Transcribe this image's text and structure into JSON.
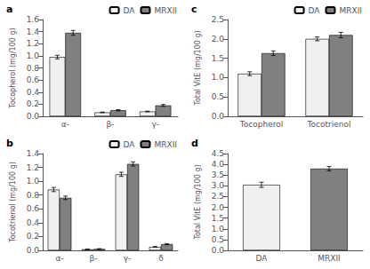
{
  "chart_data": [
    {
      "type": "bar",
      "title": "a",
      "ylabel": "Tocopherol (mg/100 g)",
      "categories": [
        "α-",
        "β-",
        "γ-"
      ],
      "series": [
        {
          "name": "DA",
          "color": "#f0f0f0",
          "values": [
            0.98,
            0.065,
            0.08
          ],
          "errors": [
            0.03,
            0.005,
            0.005
          ]
        },
        {
          "name": "MRXII",
          "color": "#808080",
          "values": [
            1.38,
            0.1,
            0.18
          ],
          "errors": [
            0.04,
            0.01,
            0.015
          ]
        }
      ],
      "ylim": [
        0,
        1.6
      ],
      "yticks": [
        {
          "value": 0,
          "label": "0.0"
        },
        0.2,
        0.4,
        0.6,
        0.8,
        {
          "value": 1.0,
          "label": "1.0"
        },
        1.2,
        1.4,
        1.6
      ],
      "grid": false,
      "legend": "upper right"
    },
    {
      "type": "bar",
      "title": "b",
      "ylabel": "Tocotrienol (mg/100 g)",
      "categories": [
        "α-",
        "β-",
        "γ-",
        "δ"
      ],
      "series": [
        {
          "name": "DA",
          "color": "#f0f0f0",
          "values": [
            0.88,
            0.015,
            1.1,
            0.05
          ],
          "errors": [
            0.03,
            0.003,
            0.03,
            0.005
          ]
        },
        {
          "name": "MRXII",
          "color": "#808080",
          "values": [
            0.76,
            0.02,
            1.25,
            0.09
          ],
          "errors": [
            0.025,
            0.004,
            0.03,
            0.008
          ]
        }
      ],
      "ylim": [
        0,
        1.4
      ],
      "yticks": [
        {
          "value": 0,
          "label": "0.0"
        },
        0.2,
        0.4,
        0.6,
        0.8,
        {
          "value": 1.0,
          "label": "1.0"
        },
        1.2,
        1.4
      ],
      "grid": false,
      "legend": "upper right"
    },
    {
      "type": "bar",
      "title": "c",
      "ylabel": "Total VitE (mg/100 g)",
      "categories": [
        "Tocopherol",
        "Tocotrienol"
      ],
      "series": [
        {
          "name": "DA",
          "color": "#f0f0f0",
          "values": [
            1.1,
            2.0
          ],
          "errors": [
            0.05,
            0.05
          ]
        },
        {
          "name": "MRXII",
          "color": "#808080",
          "values": [
            1.63,
            2.1
          ],
          "errors": [
            0.06,
            0.07
          ]
        }
      ],
      "ylim": [
        0,
        2.5
      ],
      "yticks": [
        {
          "value": 0,
          "label": "0.0"
        },
        0.5,
        {
          "value": 1.0,
          "label": "1.0"
        },
        1.5,
        {
          "value": 2.0,
          "label": "2.0"
        },
        2.5
      ],
      "grid": false,
      "legend": "upper right"
    },
    {
      "type": "bar",
      "title": "d",
      "ylabel": "Total VitE (mg/100 g)",
      "categories": [
        "DA",
        "MRXII"
      ],
      "values": [
        3.05,
        3.8
      ],
      "errors": [
        0.12,
        0.1
      ],
      "colors": [
        "#f0f0f0",
        "#808080"
      ],
      "ylim": [
        0,
        4.5
      ],
      "yticks": [
        {
          "value": 0,
          "label": "0.0"
        },
        0.5,
        {
          "value": 1.0,
          "label": "1.0"
        },
        1.5,
        {
          "value": 2.0,
          "label": "2.0"
        },
        2.5,
        {
          "value": 3.0,
          "label": "3.0"
        },
        3.5,
        {
          "value": 4.0,
          "label": "4.0"
        },
        4.5
      ],
      "grid": false
    }
  ]
}
